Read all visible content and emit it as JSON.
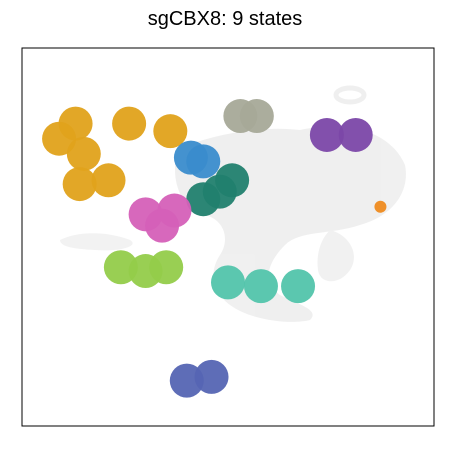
{
  "chart_data": {
    "type": "scatter",
    "title": "sgCBX8: 9 states",
    "xlabel": "",
    "ylabel": "",
    "axes_ticks": false,
    "grid": false,
    "legend": "none",
    "background_color": "#e3e3e3",
    "series": [
      {
        "color": "#e0a21b",
        "points": [
          [
            0.13,
            0.2
          ],
          [
            0.26,
            0.2
          ],
          [
            0.36,
            0.22
          ],
          [
            0.15,
            0.28
          ],
          [
            0.14,
            0.36
          ],
          [
            0.21,
            0.35
          ],
          [
            0.09,
            0.24
          ]
        ]
      },
      {
        "color": "#3a8ccc",
        "points": [
          [
            0.41,
            0.29
          ],
          [
            0.44,
            0.3
          ]
        ]
      },
      {
        "color": "#a6a998",
        "points": [
          [
            0.53,
            0.18
          ],
          [
            0.57,
            0.18
          ]
        ]
      },
      {
        "color": "#7b47a8",
        "points": [
          [
            0.74,
            0.23
          ],
          [
            0.81,
            0.23
          ]
        ]
      },
      {
        "color": "#ee8a1e",
        "points": [
          [
            0.87,
            0.42
          ]
        ]
      },
      {
        "color": "#21806e",
        "points": [
          [
            0.44,
            0.4
          ],
          [
            0.48,
            0.38
          ],
          [
            0.51,
            0.35
          ]
        ]
      },
      {
        "color": "#d560b8",
        "points": [
          [
            0.3,
            0.44
          ],
          [
            0.34,
            0.47
          ],
          [
            0.37,
            0.43
          ]
        ]
      },
      {
        "color": "#93cc4a",
        "points": [
          [
            0.24,
            0.58
          ],
          [
            0.3,
            0.59
          ],
          [
            0.35,
            0.58
          ]
        ]
      },
      {
        "color": "#52c4ab",
        "points": [
          [
            0.5,
            0.62
          ],
          [
            0.58,
            0.63
          ],
          [
            0.67,
            0.63
          ]
        ]
      },
      {
        "color": "#5565b3",
        "points": [
          [
            0.4,
            0.88
          ],
          [
            0.46,
            0.87
          ]
        ]
      }
    ]
  }
}
